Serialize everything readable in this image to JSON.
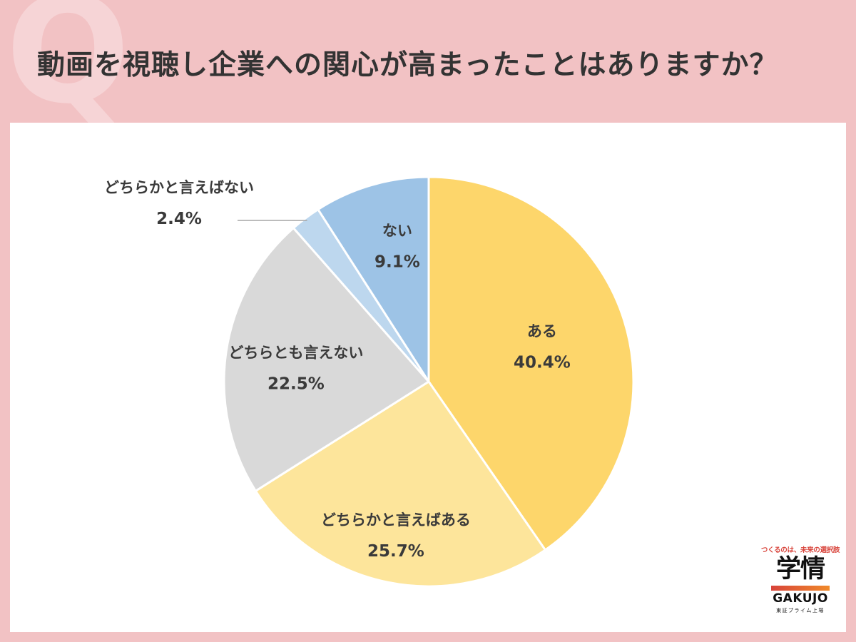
{
  "header": {
    "q_mark": "Q",
    "title": "動画を視聴し企業への関心が高まったことはありますか？"
  },
  "chart_data": {
    "type": "pie",
    "title": "動画を視聴し企業への関心が高まったことはありますか？",
    "start": "12 o'clock, clockwise",
    "slices": [
      {
        "label": "ある",
        "value": 40.4,
        "value_text": "40.4%",
        "color": "#fdd66b"
      },
      {
        "label": "どちらかと言えばある",
        "value": 25.7,
        "value_text": "25.7%",
        "color": "#fde59b"
      },
      {
        "label": "どちらとも言えない",
        "value": 22.5,
        "value_text": "22.5%",
        "color": "#d9d9d9"
      },
      {
        "label": "どちらかと言えばない",
        "value": 2.4,
        "value_text": "2.4%",
        "color": "#bdd7ee"
      },
      {
        "label": "ない",
        "value": 9.1,
        "value_text": "9.1%",
        "color": "#9dc3e6"
      }
    ]
  },
  "logo": {
    "tagline": "つくるのは、未来の選択肢",
    "kanji": "学情",
    "english": "GAKUJO",
    "sub": "東証プライム上場"
  },
  "colors": {
    "background": "#f2c2c4",
    "panel": "#ffffff",
    "title_text": "#333333",
    "logo_accent": "#d8433a"
  }
}
